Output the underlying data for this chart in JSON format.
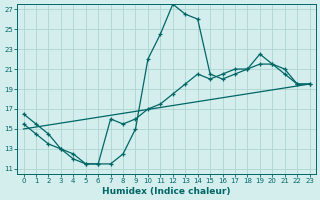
{
  "xlabel": "Humidex (Indice chaleur)",
  "background_color": "#d4eeed",
  "grid_color": "#aed4d0",
  "line_color": "#006666",
  "xlim": [
    -0.5,
    23.5
  ],
  "ylim": [
    10.5,
    27.5
  ],
  "yticks": [
    11,
    13,
    15,
    17,
    19,
    21,
    23,
    25,
    27
  ],
  "xticks": [
    0,
    1,
    2,
    3,
    4,
    5,
    6,
    7,
    8,
    9,
    10,
    11,
    12,
    13,
    14,
    15,
    16,
    17,
    18,
    19,
    20,
    21,
    22,
    23
  ],
  "line1_x": [
    0,
    1,
    2,
    3,
    4,
    5,
    6,
    7,
    8,
    9,
    10,
    11,
    12,
    13,
    14,
    15,
    16,
    17,
    18,
    19,
    20,
    21,
    22,
    23
  ],
  "line1_y": [
    16.5,
    15.5,
    14.5,
    13.0,
    12.0,
    11.5,
    11.5,
    11.5,
    12.5,
    15.0,
    22.0,
    24.5,
    27.5,
    26.5,
    26.0,
    20.5,
    20.0,
    20.5,
    21.0,
    22.5,
    21.5,
    21.0,
    19.5,
    19.5
  ],
  "line2_x": [
    0,
    1,
    2,
    3,
    4,
    5,
    6,
    7,
    8,
    9,
    10,
    11,
    12,
    13,
    14,
    15,
    16,
    17,
    18,
    19,
    20,
    21,
    22,
    23
  ],
  "line2_y": [
    15.5,
    14.5,
    13.5,
    13.0,
    12.5,
    11.5,
    11.5,
    16.0,
    15.5,
    16.0,
    17.0,
    17.5,
    18.5,
    19.5,
    20.5,
    20.0,
    20.5,
    21.0,
    21.0,
    21.5,
    21.5,
    20.5,
    19.5,
    19.5
  ],
  "line3_x": [
    0,
    23
  ],
  "line3_y": [
    15.0,
    19.5
  ]
}
